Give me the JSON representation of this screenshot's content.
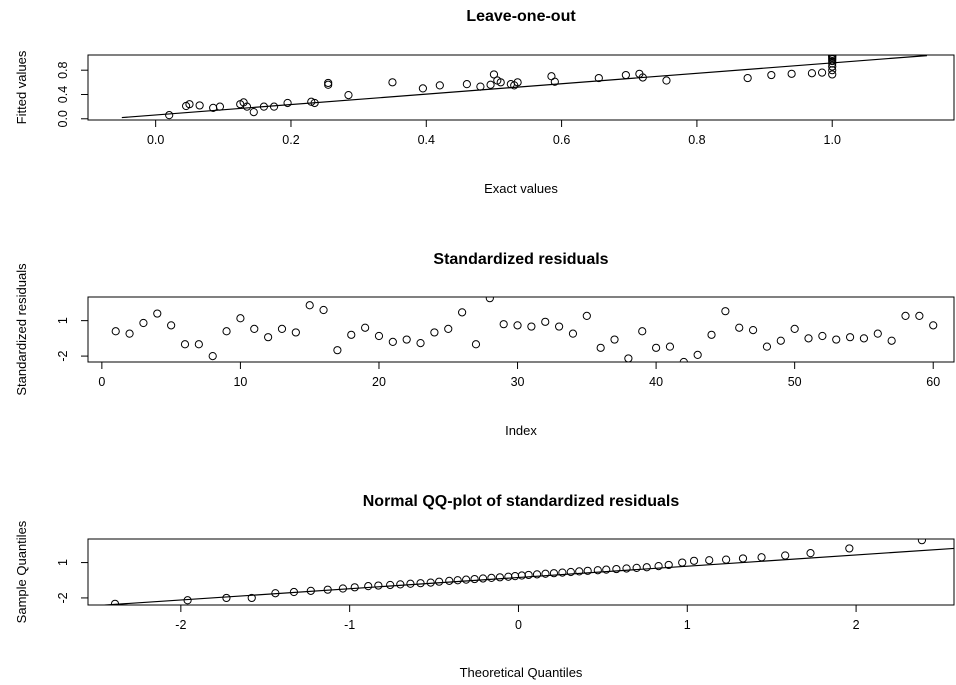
{
  "chart_data": [
    {
      "type": "scatter",
      "title": "Leave-one-out",
      "xlabel": "Exact values",
      "ylabel": "Fitted values",
      "xlim": [
        -0.1,
        1.18
      ],
      "ylim": [
        -0.02,
        1.05
      ],
      "xticks": [
        0.0,
        0.2,
        0.4,
        0.6,
        0.8,
        1.0
      ],
      "xtick_labels": [
        "0.0",
        "0.2",
        "0.4",
        "0.6",
        "0.8",
        "1.0"
      ],
      "yticks": [
        0.0,
        0.4,
        0.8
      ],
      "ytick_labels": [
        "0.0",
        "0.4",
        "0.8"
      ],
      "reference_line": {
        "x": [
          -0.05,
          1.14
        ],
        "y": [
          0.02,
          1.04
        ]
      },
      "x": [
        0.02,
        0.045,
        0.05,
        0.065,
        0.085,
        0.095,
        0.125,
        0.13,
        0.135,
        0.145,
        0.16,
        0.175,
        0.195,
        0.23,
        0.235,
        0.255,
        0.255,
        0.285,
        0.35,
        0.395,
        0.42,
        0.46,
        0.48,
        0.495,
        0.5,
        0.505,
        0.51,
        0.525,
        0.53,
        0.535,
        0.585,
        0.59,
        0.655,
        0.695,
        0.715,
        0.72,
        0.755,
        0.875,
        0.91,
        0.94,
        0.97,
        0.985,
        1.0,
        1.0,
        1.0,
        1.0,
        1.0,
        1.0,
        1.0,
        1.0,
        1.0,
        1.0
      ],
      "y": [
        0.06,
        0.21,
        0.24,
        0.22,
        0.18,
        0.2,
        0.24,
        0.27,
        0.2,
        0.11,
        0.2,
        0.2,
        0.26,
        0.28,
        0.26,
        0.56,
        0.59,
        0.39,
        0.6,
        0.5,
        0.55,
        0.57,
        0.53,
        0.56,
        0.73,
        0.63,
        0.6,
        0.57,
        0.55,
        0.6,
        0.7,
        0.61,
        0.67,
        0.72,
        0.74,
        0.68,
        0.63,
        0.67,
        0.72,
        0.74,
        0.75,
        0.76,
        0.73,
        0.8,
        0.86,
        0.91,
        0.95,
        0.98,
        1.0,
        1.02,
        1.04,
        1.05
      ]
    },
    {
      "type": "scatter",
      "title": "Standardized residuals",
      "xlabel": "Index",
      "ylabel": "Standardized residuals",
      "xlim": [
        -1.0,
        61.5
      ],
      "ylim": [
        -2.5,
        3.0
      ],
      "xticks": [
        0,
        10,
        20,
        30,
        40,
        50,
        60
      ],
      "xtick_labels": [
        "0",
        "10",
        "20",
        "30",
        "40",
        "50",
        "60"
      ],
      "yticks": [
        -2,
        1
      ],
      "ytick_labels": [
        "-2",
        "1"
      ],
      "x": [
        1,
        2,
        3,
        4,
        5,
        6,
        7,
        8,
        9,
        10,
        11,
        12,
        13,
        14,
        15,
        16,
        17,
        18,
        19,
        20,
        21,
        22,
        23,
        24,
        25,
        26,
        27,
        28,
        29,
        30,
        31,
        32,
        33,
        34,
        35,
        36,
        37,
        38,
        39,
        40,
        41,
        42,
        43,
        44,
        45,
        46,
        47,
        48,
        49,
        50,
        51,
        52,
        53,
        54,
        55,
        56,
        57,
        58,
        59,
        60
      ],
      "y": [
        0.1,
        -0.1,
        0.8,
        1.6,
        0.6,
        -1.0,
        -1.0,
        -2.0,
        0.1,
        1.2,
        0.3,
        -0.4,
        0.3,
        0.0,
        2.3,
        1.9,
        -1.5,
        -0.2,
        0.4,
        -0.3,
        -0.8,
        -0.6,
        -0.9,
        0.0,
        0.3,
        1.7,
        -1.0,
        2.9,
        0.7,
        0.6,
        0.5,
        0.9,
        0.5,
        -0.1,
        1.4,
        -1.3,
        -0.6,
        -2.2,
        0.1,
        -1.3,
        -1.2,
        -2.5,
        -1.9,
        -0.2,
        1.8,
        0.4,
        0.2,
        -1.2,
        -0.7,
        0.3,
        -0.5,
        -0.3,
        -0.6,
        -0.4,
        -0.5,
        -0.1,
        -0.7,
        1.4,
        1.4,
        0.6
      ]
    },
    {
      "type": "scatter",
      "title": "Normal QQ-plot of standardized residuals",
      "xlabel": "Theoretical Quantiles",
      "ylabel": "Sample Quantiles",
      "xlim": [
        -2.55,
        2.58
      ],
      "ylim": [
        -2.6,
        3.0
      ],
      "xticks": [
        -2,
        -1,
        0,
        1,
        2
      ],
      "xtick_labels": [
        "-2",
        "-1",
        "0",
        "1",
        "2"
      ],
      "yticks": [
        -2,
        1
      ],
      "ytick_labels": [
        "-2",
        "1"
      ],
      "reference_line": {
        "x": [
          -2.55,
          2.58
        ],
        "y": [
          -2.7,
          2.2
        ]
      },
      "x": [
        -2.39,
        -1.96,
        -1.73,
        -1.58,
        -1.44,
        -1.33,
        -1.23,
        -1.13,
        -1.04,
        -0.97,
        -0.89,
        -0.83,
        -0.76,
        -0.7,
        -0.64,
        -0.58,
        -0.52,
        -0.47,
        -0.41,
        -0.36,
        -0.31,
        -0.26,
        -0.21,
        -0.16,
        -0.11,
        -0.06,
        -0.02,
        0.02,
        0.06,
        0.11,
        0.16,
        0.21,
        0.26,
        0.31,
        0.36,
        0.41,
        0.47,
        0.52,
        0.58,
        0.64,
        0.7,
        0.76,
        0.83,
        0.89,
        0.97,
        1.04,
        1.13,
        1.23,
        1.33,
        1.44,
        1.58,
        1.73,
        1.96,
        2.39
      ],
      "y": [
        -2.5,
        -2.2,
        -2.0,
        -2.0,
        -1.6,
        -1.5,
        -1.4,
        -1.3,
        -1.2,
        -1.1,
        -1.0,
        -0.95,
        -0.9,
        -0.85,
        -0.8,
        -0.75,
        -0.7,
        -0.62,
        -0.55,
        -0.5,
        -0.45,
        -0.4,
        -0.35,
        -0.3,
        -0.25,
        -0.2,
        -0.15,
        -0.1,
        -0.05,
        0.0,
        0.05,
        0.1,
        0.15,
        0.2,
        0.25,
        0.3,
        0.35,
        0.4,
        0.45,
        0.5,
        0.55,
        0.6,
        0.7,
        0.8,
        1.0,
        1.15,
        1.2,
        1.25,
        1.35,
        1.45,
        1.6,
        1.8,
        2.2,
        2.9
      ]
    }
  ]
}
